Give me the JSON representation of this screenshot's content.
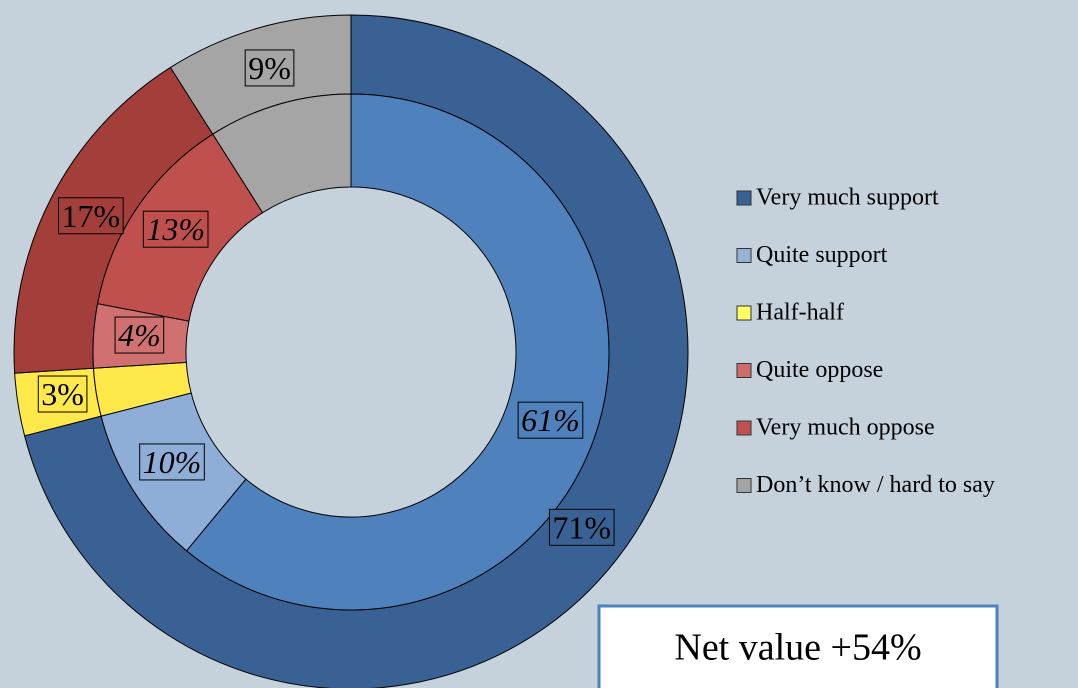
{
  "chart_data": {
    "type": "donut",
    "rings": [
      {
        "values": [
          71,
          3,
          17,
          9
        ],
        "value_labels": [
          "71%",
          "3%",
          "17%",
          "9%"
        ],
        "colors": [
          "#3a6194",
          "#ffe84a",
          "#a33e3b",
          "#a5a5a5"
        ]
      },
      {
        "values": [
          61,
          10,
          3,
          4,
          13,
          9
        ],
        "value_labels": [
          "61%",
          "10%",
          null,
          "4%",
          "13%",
          null
        ],
        "colors": [
          "#4f81bd",
          "#8eaed8",
          "#ffe84a",
          "#d07070",
          "#c0504d",
          "#a5a5a5"
        ]
      }
    ],
    "legend": [
      {
        "name": "Very much support",
        "color": "#3a6194"
      },
      {
        "name": "Quite support",
        "color": "#95b3d7"
      },
      {
        "name": "Half-half",
        "color": "#ffff66"
      },
      {
        "name": "Quite oppose",
        "color": "#d06b6b"
      },
      {
        "name": "Very much oppose",
        "color": "#c0504d"
      },
      {
        "name": "Don’t know / hard to say",
        "color": "#a5a5a5"
      }
    ],
    "annotation": "Net value +54%"
  }
}
